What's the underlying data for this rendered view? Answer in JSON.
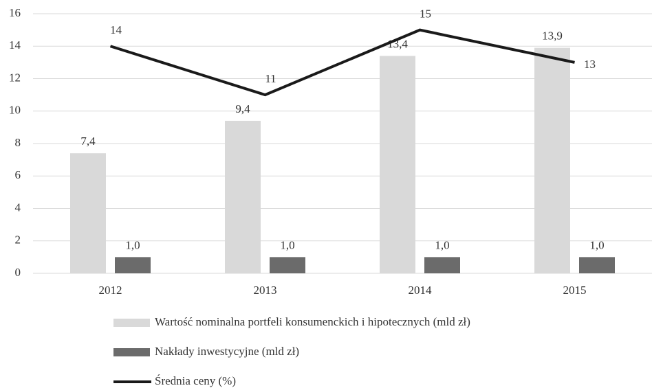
{
  "chart_data": {
    "type": "bar",
    "categories": [
      "2012",
      "2013",
      "2014",
      "2015"
    ],
    "series": [
      {
        "name": "Wartość nominalna portfeli konsumenckich i hipotecznych (mld zł)",
        "color": "#d9d9d9",
        "values": [
          7.4,
          9.4,
          13.4,
          13.9
        ],
        "value_labels": [
          "7,4",
          "9,4",
          "13,4",
          "13,9"
        ]
      },
      {
        "name": "Nakłady inwestycyjne (mld zł)",
        "color": "#6b6b6b",
        "values": [
          1.0,
          1.0,
          1.0,
          1.0
        ],
        "value_labels": [
          "1,0",
          "1,0",
          "1,0",
          "1,0"
        ]
      },
      {
        "name": "Średnia ceny (%)",
        "color": "#1a1a1a",
        "type": "line",
        "values": [
          14,
          11,
          15,
          13
        ]
      }
    ],
    "ylim": [
      0,
      16
    ],
    "yticks": [
      0,
      2,
      4,
      6,
      8,
      10,
      12,
      14,
      16
    ],
    "grid": true,
    "legend": "bottom"
  }
}
